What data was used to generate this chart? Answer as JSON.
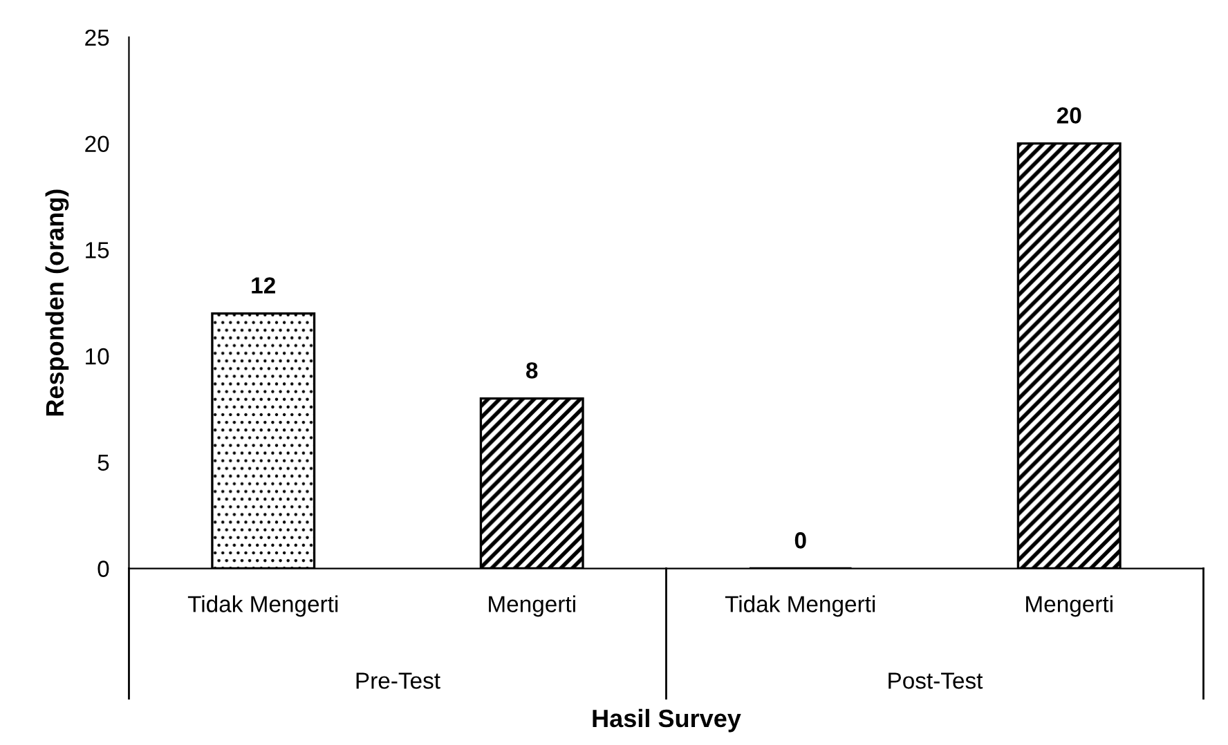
{
  "chart_data": {
    "type": "bar",
    "xlabel": "Hasil Survey",
    "ylabel": "Responden (orang)",
    "categories": [
      "Tidak Mengerti",
      "Mengerti",
      "Tidak Mengerti",
      "Mengerti"
    ],
    "values": [
      12,
      8,
      0,
      20
    ],
    "colors": [
      "#000000",
      "#000000",
      "#000000",
      "#000000"
    ],
    "ylim": [
      0,
      25
    ],
    "yticks": [
      0,
      5,
      10,
      15,
      20,
      25
    ],
    "grid": false,
    "legend": false,
    "data_labels": true,
    "annotations": [
      "Pre-Test",
      "Post-Test"
    ]
  }
}
